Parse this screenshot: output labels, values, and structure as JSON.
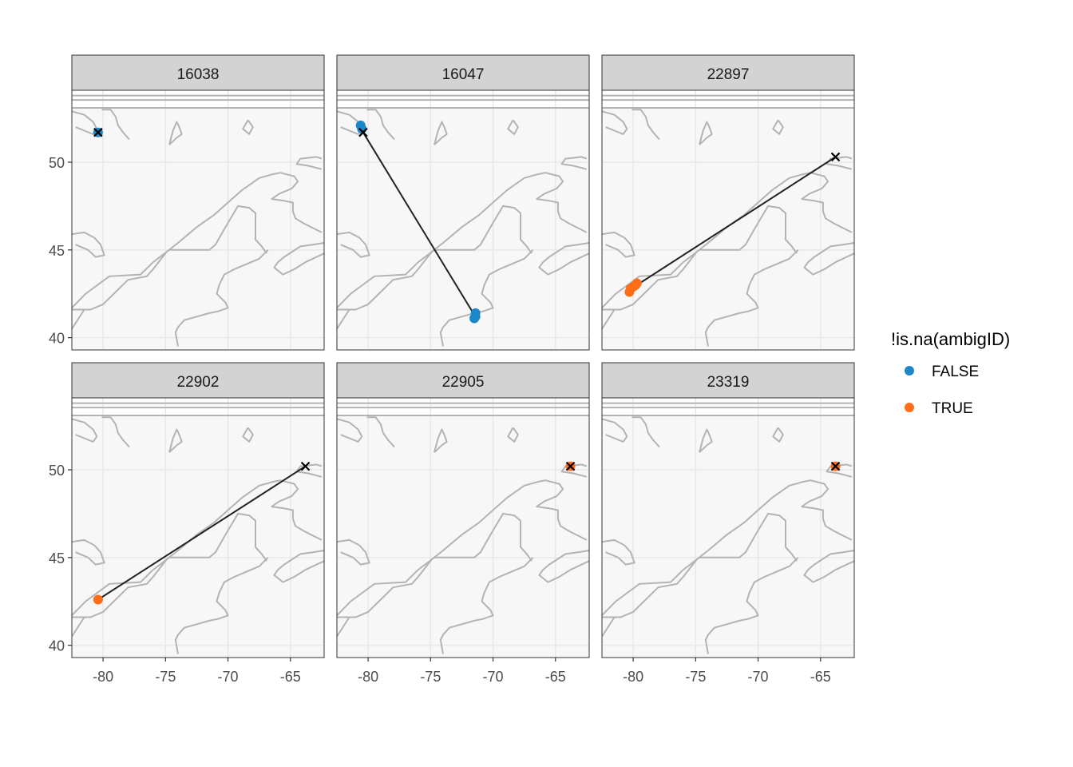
{
  "chart_data": {
    "type": "scatter",
    "facet_by": "tag id",
    "facets": [
      "16038",
      "16047",
      "22897",
      "22902",
      "22905",
      "23319"
    ],
    "xlim": [
      -82.5,
      -62.3
    ],
    "ylim": [
      39.3,
      54.1
    ],
    "x_ticks": [
      -80,
      -75,
      -70,
      -65
    ],
    "y_ticks": [
      40,
      45,
      50
    ],
    "x_tick_labels": [
      "-80",
      "-75",
      "-70",
      "-65"
    ],
    "y_tick_labels": [
      "40",
      "45",
      "50"
    ],
    "legend": {
      "title": "!is.na(ambigID)",
      "position": "right",
      "entries": [
        {
          "label": "FALSE",
          "color": "#1a87c8"
        },
        {
          "label": "TRUE",
          "color": "#ff6d16"
        }
      ]
    },
    "colors": {
      "FALSE": "#1a87c8",
      "TRUE": "#ff6d16",
      "track": "#222222",
      "deploy_marker": "#000000",
      "land_outline": "#b3b3b3",
      "panel_bg": "#f7f7f7",
      "strip_bg": "#d3d3d3",
      "grid": "#e8e8e8"
    },
    "panels": [
      {
        "id": "16038",
        "deploy": [
          -80.4,
          51.7
        ],
        "ambig": false,
        "points": [
          [
            -80.4,
            51.7
          ]
        ],
        "track": []
      },
      {
        "id": "16047",
        "deploy": [
          -80.4,
          51.7
        ],
        "ambig": false,
        "points": [
          [
            -80.6,
            52.1
          ],
          [
            -80.5,
            51.9
          ],
          [
            -71.4,
            41.4
          ],
          [
            -71.4,
            41.2
          ],
          [
            -71.5,
            41.1
          ]
        ],
        "track": [
          [
            -80.4,
            51.7
          ],
          [
            -71.5,
            41.3
          ]
        ]
      },
      {
        "id": "22897",
        "deploy": [
          -63.8,
          50.3
        ],
        "ambig": true,
        "points": [
          [
            -80.3,
            42.6
          ],
          [
            -80.2,
            42.8
          ],
          [
            -80.0,
            42.9
          ],
          [
            -79.8,
            43.0
          ],
          [
            -79.7,
            43.1
          ]
        ],
        "track": [
          [
            -63.8,
            50.3
          ],
          [
            -79.7,
            43.0
          ]
        ]
      },
      {
        "id": "22902",
        "deploy": [
          -63.8,
          50.2
        ],
        "ambig": true,
        "points": [
          [
            -80.4,
            42.6
          ]
        ],
        "track": [
          [
            -63.8,
            50.2
          ],
          [
            -80.4,
            42.6
          ]
        ]
      },
      {
        "id": "22905",
        "deploy": [
          -63.8,
          50.2
        ],
        "ambig": true,
        "points": [
          [
            -63.8,
            50.2
          ]
        ],
        "track": []
      },
      {
        "id": "23319",
        "deploy": [
          -63.8,
          50.2
        ],
        "ambig": true,
        "points": [
          [
            -63.8,
            50.2
          ]
        ],
        "track": []
      }
    ]
  }
}
